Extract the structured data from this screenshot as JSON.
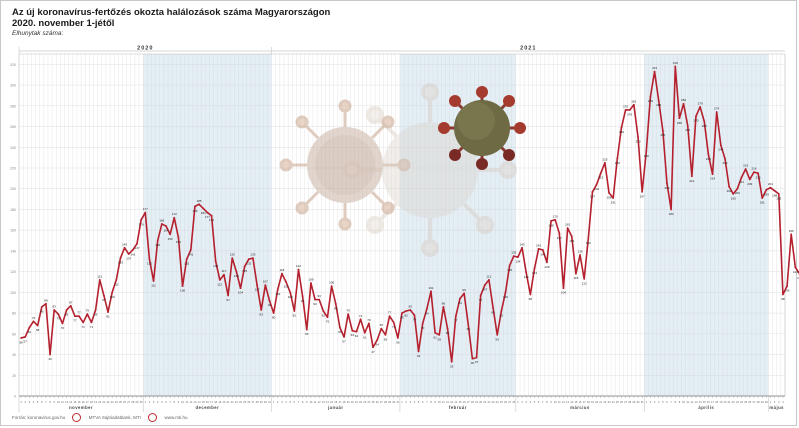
{
  "header": {
    "title": "Az új koronavírus-fertőzés okozta halálozások száma Magyarországon",
    "subtitle": "2020. november 1-jétől",
    "unit_label": "Elhunytak száma:"
  },
  "footer": {
    "source": "Forrás: koronavirus.gov.hu",
    "credit": "MTVA Sajtóadatbank, MTI",
    "site": "www.mti.hu"
  },
  "chart_data": {
    "type": "line",
    "title": "Az új koronavírus-fertőzés okozta halálozások száma Magyarországon",
    "subtitle": "2020. november 1-jétől",
    "ylabel": "Elhunytak száma:",
    "x_start": "2020-11-01",
    "x_end": "2021-05-04",
    "ylim": [
      0,
      330
    ],
    "grid": true,
    "color": "#b5202e",
    "years": [
      {
        "label": "2020",
        "start": "2020-11-01",
        "end": "2020-12-31"
      },
      {
        "label": "2021",
        "start": "2021-01-01",
        "end": "2021-05-04"
      }
    ],
    "months": [
      {
        "label": "november",
        "start": "2020-11-01",
        "end": "2020-11-30",
        "shaded": false
      },
      {
        "label": "december",
        "start": "2020-12-01",
        "end": "2020-12-31",
        "shaded": true
      },
      {
        "label": "január",
        "start": "2021-01-01",
        "end": "2021-01-31",
        "shaded": false
      },
      {
        "label": "február",
        "start": "2021-02-01",
        "end": "2021-02-28",
        "shaded": true
      },
      {
        "label": "március",
        "start": "2021-03-01",
        "end": "2021-03-31",
        "shaded": false
      },
      {
        "label": "április",
        "start": "2021-04-01",
        "end": "2021-04-30",
        "shaded": true
      },
      {
        "label": "május",
        "start": "2021-05-01",
        "end": "2021-05-04",
        "shaded": false
      }
    ],
    "values": [
      56,
      57,
      66,
      72,
      68,
      86,
      89,
      40,
      83,
      79,
      70,
      83,
      87,
      77,
      77,
      71,
      79,
      71,
      83,
      112,
      97,
      81,
      100,
      112,
      133,
      143,
      137,
      141,
      147,
      170,
      177,
      132,
      111,
      150,
      166,
      164,
      156,
      172,
      153,
      106,
      132,
      141,
      183,
      185,
      181,
      177,
      174,
      130,
      112,
      117,
      97,
      133,
      120,
      104,
      125,
      132,
      133,
      107,
      83,
      107,
      92,
      80,
      103,
      118,
      110,
      100,
      82,
      122,
      96,
      64,
      109,
      93,
      93,
      82,
      76,
      106,
      89,
      66,
      57,
      79,
      63,
      62,
      74,
      61,
      70,
      47,
      54,
      65,
      59,
      77,
      71,
      56,
      80,
      82,
      83,
      78,
      43,
      70,
      84,
      101,
      61,
      59,
      86,
      65,
      33,
      77,
      94,
      99,
      69,
      36,
      37,
      97,
      107,
      112,
      85,
      59,
      82,
      100,
      126,
      135,
      134,
      143,
      119,
      98,
      123,
      142,
      141,
      129,
      169,
      170,
      157,
      104,
      162,
      154,
      118,
      136,
      113,
      152,
      197,
      204,
      215,
      225,
      196,
      191,
      229,
      259,
      276,
      276,
      281,
      250,
      197,
      236,
      289,
      313,
      285,
      256,
      205,
      180,
      318,
      268,
      282,
      261,
      212,
      270,
      279,
      265,
      233,
      214,
      274,
      242,
      229,
      202,
      195,
      200,
      211,
      219,
      209,
      216,
      215,
      191,
      199,
      201,
      198,
      195,
      98,
      106,
      156,
      124,
      118
    ]
  }
}
